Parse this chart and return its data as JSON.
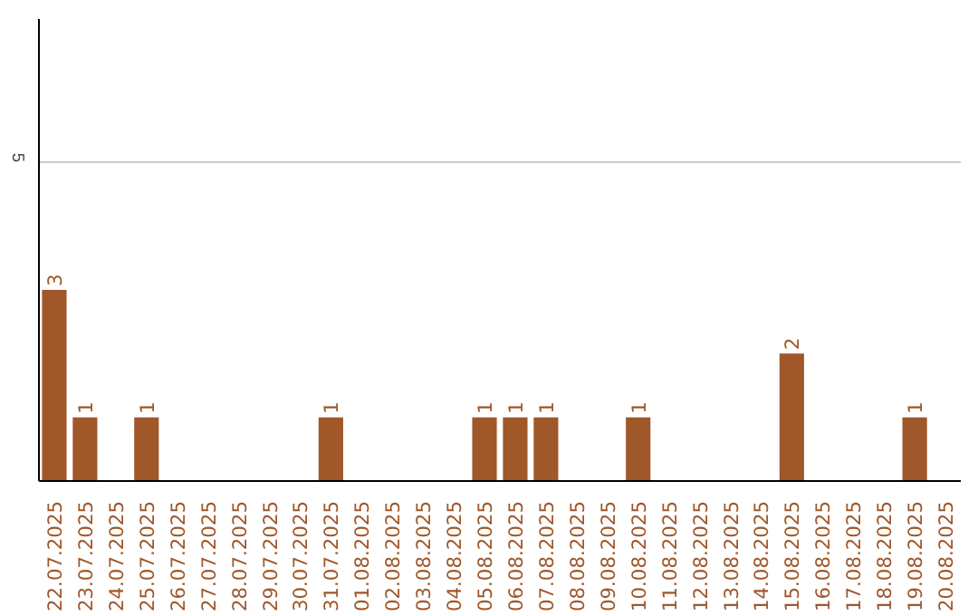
{
  "chart_data": {
    "type": "bar",
    "categories": [
      "22.07.2025",
      "23.07.2025",
      "24.07.2025",
      "25.07.2025",
      "26.07.2025",
      "27.07.2025",
      "28.07.2025",
      "29.07.2025",
      "30.07.2025",
      "31.07.2025",
      "01.08.2025",
      "02.08.2025",
      "03.08.2025",
      "04.08.2025",
      "05.08.2025",
      "06.08.2025",
      "07.08.2025",
      "08.08.2025",
      "09.08.2025",
      "10.08.2025",
      "11.08.2025",
      "12.08.2025",
      "13.08.2025",
      "14.08.2025",
      "15.08.2025",
      "16.08.2025",
      "17.08.2025",
      "18.08.2025",
      "19.08.2025",
      "20.08.2025"
    ],
    "values": [
      3,
      1,
      0,
      1,
      0,
      0,
      0,
      0,
      0,
      1,
      0,
      0,
      0,
      0,
      1,
      1,
      1,
      0,
      0,
      1,
      0,
      0,
      0,
      0,
      2,
      0,
      0,
      0,
      1,
      0
    ],
    "value_labels": [
      "3",
      "1",
      null,
      "1",
      null,
      null,
      null,
      null,
      null,
      "1",
      null,
      null,
      null,
      null,
      "1",
      "1",
      "1",
      null,
      null,
      "1",
      null,
      null,
      null,
      null,
      "2",
      null,
      null,
      null,
      "1",
      null
    ],
    "color": "#a0572a",
    "ylim": [
      0,
      7.25
    ],
    "yticks": [
      5
    ],
    "grid": "y"
  }
}
